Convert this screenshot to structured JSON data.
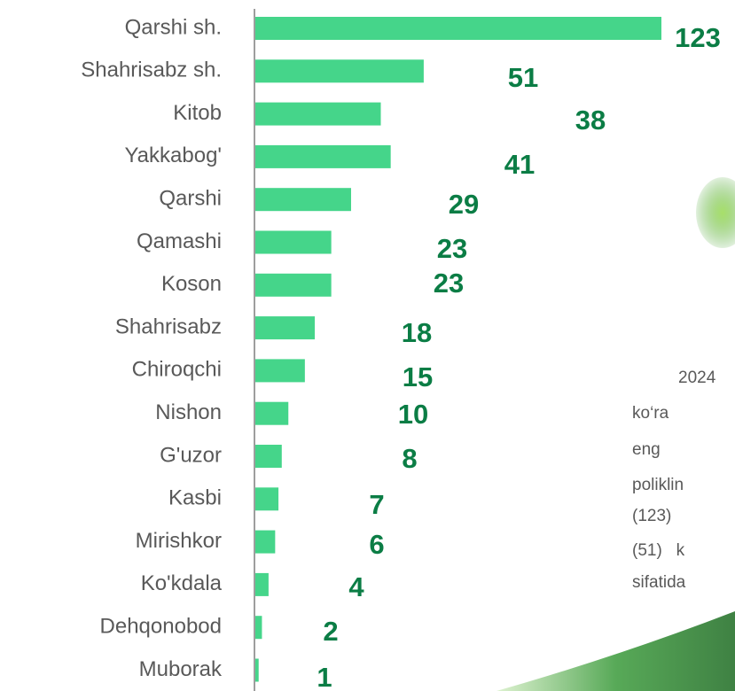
{
  "chart_data": {
    "type": "bar",
    "orientation": "horizontal",
    "color": "#45d58a",
    "categories": [
      "Qarshi sh.",
      "Shahrisabz sh.",
      "Kitob",
      "Yakkabog'",
      "Qarshi",
      "Qamashi",
      "Koson",
      "Shahrisabz",
      "Chiroqchi",
      "Nishon",
      "G'uzor",
      "Kasbi",
      "Mirishkor",
      "Ko'kdala",
      "Dehqonobod",
      "Muborak"
    ],
    "values": [
      123,
      51,
      38,
      41,
      29,
      23,
      23,
      18,
      15,
      10,
      8,
      7,
      6,
      4,
      2,
      1
    ],
    "annotations": [
      "2024",
      "ko‘ra",
      "eng",
      "poliklin",
      "(123)",
      "(51)   k",
      "sifatida"
    ]
  }
}
